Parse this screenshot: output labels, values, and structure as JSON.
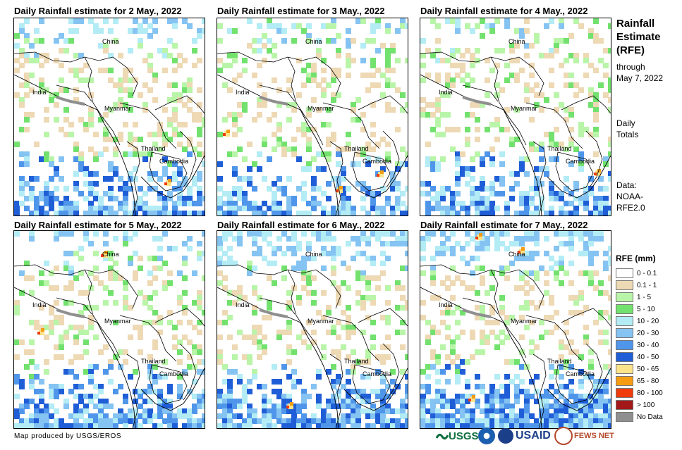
{
  "panels": [
    {
      "title": "Daily Rainfall estimate for 2 May., 2022",
      "labels": {
        "china": "China",
        "india": "India",
        "myanmar": "Myanmar",
        "thailand": "Thailand",
        "cambodia": "Cambodia"
      }
    },
    {
      "title": "Daily Rainfall estimate for 3 May., 2022",
      "labels": {
        "china": "China",
        "india": "India",
        "myanmar": "Myanmar",
        "thailand": "Thailand",
        "cambodia": "Cambodia"
      }
    },
    {
      "title": "Daily Rainfall estimate for 4 May., 2022",
      "labels": {
        "china": "China",
        "india": "India",
        "myanmar": "Myanmar",
        "thailand": "Thailand",
        "cambodia": "Cambodia"
      }
    },
    {
      "title": "Daily Rainfall estimate for 5 May., 2022",
      "labels": {
        "china": "China",
        "india": "India",
        "myanmar": "Myanmar",
        "thailand": "Thailand",
        "cambodia": "Cambodia"
      }
    },
    {
      "title": "Daily Rainfall estimate for 6 May., 2022",
      "labels": {
        "china": "China",
        "india": "India",
        "myanmar": "Myanmar",
        "thailand": "Thailand",
        "cambodia": "Cambodia"
      }
    },
    {
      "title": "Daily Rainfall estimate for 7 May., 2022",
      "labels": {
        "china": "China",
        "india": "India",
        "myanmar": "Myanmar",
        "thailand": "Thailand",
        "cambodia": "Cambodia"
      }
    }
  ],
  "sidebar": {
    "title_line1": "Rainfall",
    "title_line2": "Estimate",
    "title_line3": "(RFE)",
    "through_line1": "through",
    "through_line2": "May 7, 2022",
    "totals_line1": "Daily",
    "totals_line2": "Totals",
    "data_line1": "Data:",
    "data_line2": "NOAA-",
    "data_line3": "RFE2.0"
  },
  "legend": {
    "title": "RFE (mm)",
    "items": [
      {
        "label": "0 - 0.1",
        "color": "#ffffff"
      },
      {
        "label": "0.1 - 1",
        "color": "#eed9b5"
      },
      {
        "label": "1 - 5",
        "color": "#b9f5a8"
      },
      {
        "label": "5 - 10",
        "color": "#72e16e"
      },
      {
        "label": "10 - 20",
        "color": "#b3ecf5"
      },
      {
        "label": "20 - 30",
        "color": "#85c3f2"
      },
      {
        "label": "30 - 40",
        "color": "#4f96ea"
      },
      {
        "label": "40 - 50",
        "color": "#1f5ed6"
      },
      {
        "label": "50 - 65",
        "color": "#fbe38a"
      },
      {
        "label": "65 - 80",
        "color": "#f59c13"
      },
      {
        "label": "80 - 100",
        "color": "#f03c0c"
      },
      {
        "label": "> 100",
        "color": "#a3191a"
      },
      {
        "label": "No Data",
        "color": "#8f8f8f"
      }
    ]
  },
  "footer": {
    "credit": "Map produced by USGS/EROS",
    "logo_usgs": "USGS",
    "logo_usaid": "USAID",
    "logo_fewsnet": "FEWS NET"
  }
}
